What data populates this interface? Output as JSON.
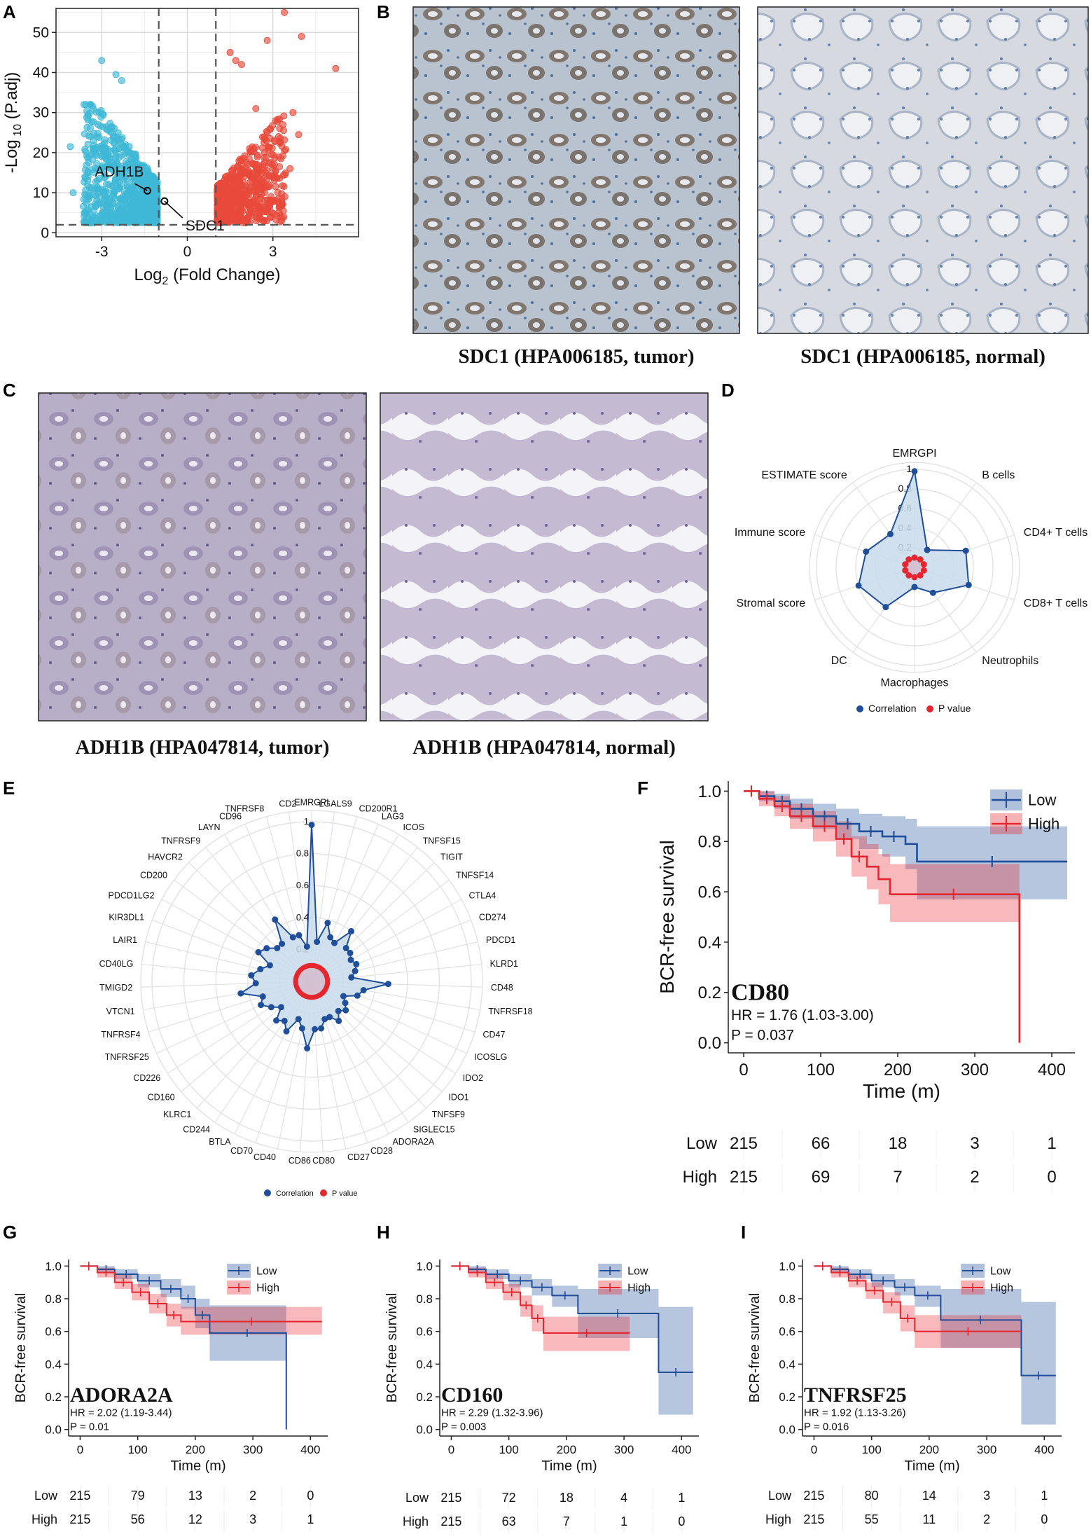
{
  "panels": {
    "a": "A",
    "b": "B",
    "c": "C",
    "d": "D",
    "e": "E",
    "f": "F",
    "g": "G",
    "h": "H",
    "i": "I"
  },
  "colors": {
    "low": "#1f4e9a",
    "high": "#e6262e",
    "down": "#3fb8d6",
    "up": "#e8493a",
    "radar_corr": "#1f4e9a",
    "radar_p": "#e6262e",
    "radar_fill": "#c9dbec"
  },
  "chart_data": [
    {
      "id": "A",
      "type": "scatter",
      "xlabel_main": "Log",
      "xlabel_sub": "2",
      "xlabel_rest": " (Fold Change)",
      "ylabel_main": "-Log",
      "ylabel_sub": " 10",
      "ylabel_rest": " (P.adj)",
      "xlim": [
        -4.6,
        6.0
      ],
      "ylim": [
        -1,
        56
      ],
      "xticks": [
        -3,
        0,
        3
      ],
      "yticks": [
        0,
        10,
        20,
        30,
        40,
        50
      ],
      "thresholds": {
        "x": [
          -1,
          1
        ],
        "y": 2
      },
      "annotations": [
        {
          "label": "ADH1B",
          "x": -1.4,
          "y": 10.5
        },
        {
          "label": "SDC1",
          "x": -0.8,
          "y": 7.9
        }
      ]
    },
    {
      "id": "D",
      "type": "radar",
      "axes": [
        "EMRGPI",
        "B cells",
        "CD4+ T cells",
        "CD8+ T cells",
        "Neutrophils",
        "Macrophages",
        "DC",
        "Stromal score",
        "Immune score",
        "ESTIMATE score"
      ],
      "ticks": [
        "0.2",
        "0.4",
        "0.6",
        "0.8",
        "1"
      ],
      "correlation": [
        0.98,
        0.22,
        0.55,
        0.58,
        0.32,
        0.2,
        0.5,
        0.6,
        0.52,
        0.42
      ],
      "pvalue": [
        0.1,
        0.1,
        0.1,
        0.1,
        0.1,
        0.1,
        0.1,
        0.1,
        0.1,
        0.1
      ],
      "legend": [
        "Correlation",
        "P value"
      ]
    },
    {
      "id": "E",
      "type": "radar",
      "axes": [
        "EMRGPI",
        "LGALS9",
        "CD200R1",
        "LAG3",
        "ICOS",
        "TNFSF15",
        "TIGIT",
        "TNFSF14",
        "CTLA4",
        "CD274",
        "PDCD1",
        "KLRD1",
        "CD48",
        "TNFRSF18",
        "CD47",
        "ICOSLG",
        "IDO2",
        "IDO1",
        "TNFSF9",
        "SIGLEC15",
        "ADORA2A",
        "CD28",
        "CD27",
        "CD80",
        "CD86",
        "CD40",
        "CD70",
        "BTLA",
        "CD244",
        "KLRC1",
        "CD160",
        "CD226",
        "TNFRSF25",
        "TNFRSF4",
        "VTCN1",
        "TMIGD2",
        "CD40LG",
        "LAIR1",
        "KIR3DL1",
        "PDCD1LG2",
        "CD200",
        "HAVCR2",
        "TNFRSF9",
        "LAYN",
        "CD96",
        "TNFRSF8",
        "CD2"
      ],
      "ticks": [
        "0.2",
        "0.4",
        "0.6",
        "0.8",
        "1"
      ],
      "correlation": [
        0.98,
        0.25,
        0.38,
        0.3,
        0.28,
        0.4,
        0.3,
        0.3,
        0.28,
        0.3,
        0.28,
        0.25,
        0.48,
        0.33,
        0.3,
        0.22,
        0.25,
        0.28,
        0.25,
        0.3,
        0.25,
        0.25,
        0.3,
        0.3,
        0.42,
        0.3,
        0.25,
        0.35,
        0.3,
        0.33,
        0.25,
        0.3,
        0.35,
        0.32,
        0.45,
        0.35,
        0.38,
        0.33,
        0.28,
        0.38,
        0.35,
        0.3,
        0.3,
        0.45,
        0.3,
        0.3,
        0.22
      ],
      "pvalue_level": 0.1,
      "legend": [
        "Correlation",
        "P value"
      ]
    },
    {
      "id": "F",
      "type": "line",
      "title": "CD80",
      "hr": "HR = 1.76 (1.03-3.00)",
      "p": "P = 0.037",
      "xlabel": "Time (m)",
      "ylabel": "BCR-free survival",
      "xlim": [
        -20,
        430
      ],
      "ylim": [
        -0.04,
        1.04
      ],
      "xticks": [
        0,
        100,
        200,
        300,
        400
      ],
      "yticks": [
        "0.0",
        "0.2",
        "0.4",
        "0.6",
        "0.8",
        "1.0"
      ],
      "legend": [
        "Low",
        "High"
      ],
      "series": [
        {
          "name": "Low",
          "x": [
            0,
            20,
            40,
            60,
            90,
            120,
            150,
            180,
            210,
            225,
            420
          ],
          "y": [
            1.0,
            0.98,
            0.96,
            0.93,
            0.9,
            0.87,
            0.84,
            0.82,
            0.79,
            0.72,
            0.72
          ],
          "lo": [
            1.0,
            0.96,
            0.93,
            0.89,
            0.85,
            0.81,
            0.77,
            0.74,
            0.69,
            0.57,
            0.57
          ],
          "hi": [
            1.0,
            1.0,
            0.99,
            0.97,
            0.95,
            0.93,
            0.91,
            0.9,
            0.89,
            0.86,
            0.86
          ]
        },
        {
          "name": "High",
          "x": [
            0,
            20,
            40,
            60,
            90,
            120,
            140,
            160,
            175,
            190,
            355,
            358
          ],
          "y": [
            1.0,
            0.97,
            0.94,
            0.9,
            0.86,
            0.81,
            0.74,
            0.7,
            0.65,
            0.59,
            0.59,
            0.0
          ],
          "lo": [
            1.0,
            0.94,
            0.9,
            0.85,
            0.8,
            0.74,
            0.66,
            0.61,
            0.55,
            0.48,
            0.48,
            0.0
          ],
          "hi": [
            1.0,
            1.0,
            0.98,
            0.95,
            0.92,
            0.88,
            0.82,
            0.79,
            0.75,
            0.71,
            0.71,
            0.71
          ]
        }
      ],
      "risk": {
        "Low": [
          "215",
          "66",
          "18",
          "3",
          "1"
        ],
        "High": [
          "215",
          "69",
          "7",
          "2",
          "0"
        ]
      }
    },
    {
      "id": "G",
      "type": "line",
      "title": "ADORA2A",
      "hr": "HR = 2.02 (1.19-3.44)",
      "p": "P = 0.01",
      "xlabel": "Time (m)",
      "ylabel": "BCR-free survival",
      "xlim": [
        -20,
        430
      ],
      "ylim": [
        -0.04,
        1.04
      ],
      "xticks": [
        0,
        100,
        200,
        300,
        400
      ],
      "yticks": [
        "0.0",
        "0.2",
        "0.4",
        "0.6",
        "0.8",
        "1.0"
      ],
      "legend": [
        "Low",
        "High"
      ],
      "series": [
        {
          "name": "Low",
          "x": [
            0,
            30,
            60,
            100,
            140,
            175,
            200,
            225,
            355,
            358
          ],
          "y": [
            1.0,
            0.98,
            0.95,
            0.91,
            0.86,
            0.8,
            0.7,
            0.59,
            0.59,
            0.0
          ],
          "lo": [
            1.0,
            0.96,
            0.92,
            0.87,
            0.81,
            0.74,
            0.62,
            0.42,
            0.42,
            0.0
          ],
          "hi": [
            1.0,
            1.0,
            0.98,
            0.95,
            0.92,
            0.88,
            0.8,
            0.76,
            0.76,
            0.76
          ]
        },
        {
          "name": "High",
          "x": [
            0,
            30,
            60,
            90,
            120,
            150,
            175,
            420
          ],
          "y": [
            1.0,
            0.96,
            0.9,
            0.84,
            0.77,
            0.7,
            0.66,
            0.66
          ],
          "lo": [
            1.0,
            0.93,
            0.86,
            0.79,
            0.71,
            0.63,
            0.58,
            0.58
          ],
          "hi": [
            1.0,
            0.99,
            0.95,
            0.89,
            0.83,
            0.77,
            0.75,
            0.75
          ]
        }
      ],
      "risk": {
        "Low": [
          "215",
          "79",
          "13",
          "2",
          "0"
        ],
        "High": [
          "215",
          "56",
          "12",
          "3",
          "1"
        ]
      }
    },
    {
      "id": "H",
      "type": "line",
      "title": "CD160",
      "hr": "HR = 2.29 (1.32-3.96)",
      "p": "P = 0.003",
      "xlabel": "Time (m)",
      "ylabel": "BCR-free survival",
      "xlim": [
        -20,
        430
      ],
      "ylim": [
        -0.04,
        1.04
      ],
      "xticks": [
        0,
        100,
        200,
        300,
        400
      ],
      "yticks": [
        "0.0",
        "0.2",
        "0.4",
        "0.6",
        "0.8",
        "1.0"
      ],
      "legend": [
        "Low",
        "High"
      ],
      "series": [
        {
          "name": "Low",
          "x": [
            0,
            30,
            60,
            100,
            140,
            175,
            220,
            358,
            360,
            420
          ],
          "y": [
            1.0,
            0.98,
            0.95,
            0.91,
            0.87,
            0.82,
            0.71,
            0.71,
            0.35,
            0.35
          ],
          "lo": [
            1.0,
            0.96,
            0.92,
            0.87,
            0.82,
            0.75,
            0.56,
            0.56,
            0.09,
            0.09
          ],
          "hi": [
            1.0,
            1.0,
            0.98,
            0.95,
            0.92,
            0.88,
            0.86,
            0.86,
            0.75,
            0.75
          ]
        },
        {
          "name": "High",
          "x": [
            0,
            30,
            60,
            90,
            120,
            140,
            160,
            310
          ],
          "y": [
            1.0,
            0.96,
            0.9,
            0.84,
            0.76,
            0.68,
            0.59,
            0.59
          ],
          "lo": [
            1.0,
            0.93,
            0.86,
            0.79,
            0.69,
            0.6,
            0.48,
            0.48
          ],
          "hi": [
            1.0,
            0.99,
            0.95,
            0.89,
            0.82,
            0.76,
            0.69,
            0.69
          ]
        }
      ],
      "risk": {
        "Low": [
          "215",
          "72",
          "18",
          "4",
          "1"
        ],
        "High": [
          "215",
          "63",
          "7",
          "1",
          "0"
        ]
      }
    },
    {
      "id": "I",
      "type": "line",
      "title": "TNFRSF25",
      "hr": "HR = 1.92 (1.13-3.26)",
      "p": "P = 0.016",
      "xlabel": "Time (m)",
      "ylabel": "BCR-free survival",
      "xlim": [
        -20,
        430
      ],
      "ylim": [
        -0.04,
        1.04
      ],
      "xticks": [
        0,
        100,
        200,
        300,
        400
      ],
      "yticks": [
        "0.0",
        "0.2",
        "0.4",
        "0.6",
        "0.8",
        "1.0"
      ],
      "legend": [
        "Low",
        "High"
      ],
      "series": [
        {
          "name": "Low",
          "x": [
            0,
            30,
            60,
            100,
            140,
            175,
            220,
            358,
            360,
            420
          ],
          "y": [
            1.0,
            0.98,
            0.95,
            0.91,
            0.87,
            0.82,
            0.67,
            0.67,
            0.33,
            0.33
          ],
          "lo": [
            1.0,
            0.96,
            0.92,
            0.87,
            0.82,
            0.75,
            0.5,
            0.5,
            0.03,
            0.03
          ],
          "hi": [
            1.0,
            1.0,
            0.98,
            0.95,
            0.92,
            0.88,
            0.86,
            0.86,
            0.78,
            0.78
          ]
        },
        {
          "name": "High",
          "x": [
            0,
            30,
            60,
            90,
            120,
            150,
            175,
            360
          ],
          "y": [
            1.0,
            0.96,
            0.91,
            0.85,
            0.78,
            0.68,
            0.6,
            0.6
          ],
          "lo": [
            1.0,
            0.93,
            0.87,
            0.8,
            0.71,
            0.6,
            0.5,
            0.5
          ],
          "hi": [
            1.0,
            0.99,
            0.95,
            0.9,
            0.84,
            0.76,
            0.7,
            0.7
          ]
        }
      ],
      "risk": {
        "Low": [
          "215",
          "80",
          "14",
          "3",
          "1"
        ],
        "High": [
          "215",
          "55",
          "11",
          "2",
          "0"
        ]
      }
    }
  ],
  "ihc": {
    "b_tumor": "SDC1 (HPA006185, tumor)",
    "b_normal": "SDC1 (HPA006185, normal)",
    "c_tumor": "ADH1B (HPA047814, tumor)",
    "c_normal": "ADH1B (HPA047814, normal)"
  }
}
